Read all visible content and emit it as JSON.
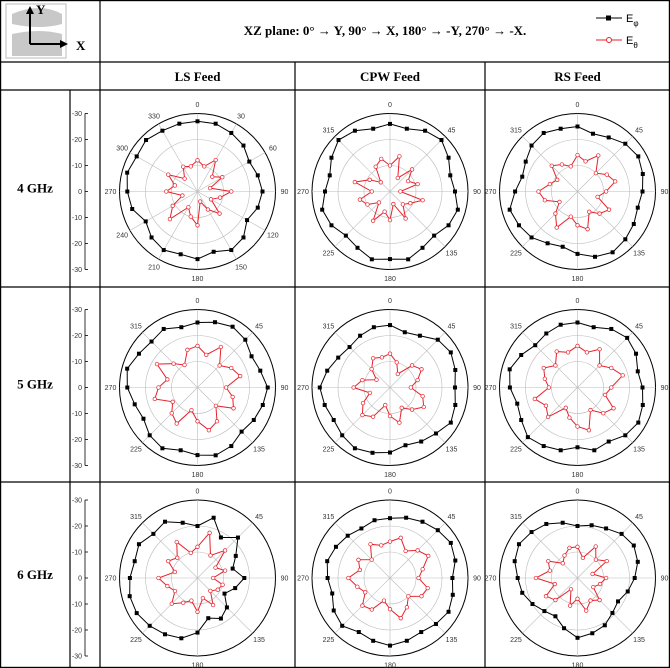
{
  "header": {
    "title": "XZ plane: 0° → Y, 90° → X, 180° → -Y, 270° → -X."
  },
  "icon": {
    "y": "Y",
    "x": "X"
  },
  "columns": [
    "LS Feed",
    "CPW Feed",
    "RS Feed"
  ],
  "rows": [
    "4 GHz",
    "5 GHz",
    "6 GHz"
  ],
  "legend": [
    {
      "name": "E",
      "subscript": "φ",
      "color": "#000000",
      "marker": "square"
    },
    {
      "name": "E",
      "subscript": "θ",
      "color": "#e8202a",
      "marker": "circle"
    }
  ],
  "chart_data": [
    {
      "type": "polar",
      "x": [
        0,
        15,
        30,
        45,
        60,
        75,
        90,
        105,
        120,
        135,
        150,
        165,
        180,
        195,
        210,
        225,
        240,
        255,
        270,
        285,
        300,
        315,
        330,
        345
      ],
      "rlim": [
        -30,
        0
      ],
      "rticks": [
        -30,
        -20,
        -10,
        0
      ],
      "angle_ticks": [
        0,
        30,
        60,
        90,
        120,
        150,
        180,
        210,
        240,
        270,
        300,
        330
      ],
      "series": [
        {
          "values": [
            -3,
            -3,
            -4,
            -5,
            -7,
            -6,
            -5,
            -6,
            -8,
            -5,
            -4,
            -6,
            -4,
            -5,
            -4,
            -5,
            -7,
            -4,
            -3,
            -2,
            -3,
            -2,
            -3,
            -3
          ]
        },
        {
          "values": [
            -18,
            -20,
            -16,
            -22,
            -19,
            -25,
            -17,
            -21,
            -24,
            -18,
            -22,
            -26,
            -17,
            -20,
            -23,
            -15,
            -19,
            -24,
            -18,
            -21,
            -17,
            -23,
            -19,
            -20
          ]
        }
      ]
    },
    {
      "type": "polar",
      "x": [
        0,
        15,
        30,
        45,
        60,
        75,
        90,
        105,
        120,
        135,
        150,
        165,
        180,
        195,
        210,
        225,
        240,
        255,
        270,
        285,
        300,
        315,
        330,
        345
      ],
      "rlim": [
        -30,
        0
      ],
      "rticks": [
        -30,
        -20,
        -10,
        0
      ],
      "angle_ticks": [
        0,
        45,
        90,
        135,
        180,
        225,
        270,
        315
      ],
      "series": [
        {
          "values": [
            -4,
            -5,
            -3,
            -2,
            -4,
            -6,
            -5,
            -3,
            -4,
            -6,
            -5,
            -3,
            -4,
            -3,
            -5,
            -6,
            -4,
            -3,
            -5,
            -6,
            -4,
            -2,
            -3,
            -5
          ]
        },
        {
          "values": [
            -20,
            -16,
            -24,
            -18,
            -22,
            -19,
            -26,
            -17,
            -21,
            -23,
            -18,
            -25,
            -19,
            -22,
            -17,
            -24,
            -20,
            -18,
            -23,
            -16,
            -21,
            -25,
            -19,
            -17
          ]
        }
      ]
    },
    {
      "type": "polar",
      "x": [
        0,
        15,
        30,
        45,
        60,
        75,
        90,
        105,
        120,
        135,
        150,
        165,
        180,
        195,
        210,
        225,
        240,
        255,
        270,
        285,
        300,
        315,
        330,
        345
      ],
      "rlim": [
        -30,
        0
      ],
      "rticks": [
        -30,
        -20,
        -10,
        0
      ],
      "angle_ticks": [
        0,
        45,
        90,
        135,
        180,
        225,
        270,
        315
      ],
      "series": [
        {
          "values": [
            -5,
            -7,
            -6,
            -4,
            -3,
            -4,
            -5,
            -6,
            -5,
            -4,
            -3,
            -4,
            -6,
            -8,
            -7,
            -5,
            -4,
            -3,
            -6,
            -8,
            -7,
            -5,
            -4,
            -5
          ]
        },
        {
          "values": [
            -16,
            -18,
            -14,
            -20,
            -17,
            -15,
            -19,
            -22,
            -16,
            -18,
            -21,
            -15,
            -17,
            -20,
            -14,
            -18,
            -22,
            -17,
            -15,
            -19,
            -21,
            -16,
            -18,
            -20
          ]
        }
      ]
    },
    {
      "type": "polar",
      "x": [
        0,
        15,
        30,
        45,
        60,
        75,
        90,
        105,
        120,
        135,
        150,
        165,
        180,
        195,
        210,
        225,
        240,
        255,
        270,
        285,
        300,
        315,
        330,
        345
      ],
      "rlim": [
        -30,
        0
      ],
      "rticks": [
        -30,
        -20,
        -10,
        0
      ],
      "angle_ticks": [
        0,
        45,
        90,
        135,
        180,
        225,
        270,
        315
      ],
      "series": [
        {
          "values": [
            -5,
            -4,
            -3,
            -4,
            -6,
            -5,
            -3,
            -4,
            -5,
            -6,
            -4,
            -3,
            -4,
            -5,
            -3,
            -4,
            -6,
            -5,
            -3,
            -2,
            -4,
            -5,
            -4,
            -6
          ]
        },
        {
          "values": [
            -14,
            -17,
            -12,
            -18,
            -15,
            -13,
            -19,
            -16,
            -14,
            -20,
            -15,
            -13,
            -17,
            -21,
            -14,
            -16,
            -19,
            -13,
            -15,
            -18,
            -12,
            -17,
            -20,
            -15
          ]
        }
      ]
    },
    {
      "type": "polar",
      "x": [
        0,
        15,
        30,
        45,
        60,
        75,
        90,
        105,
        120,
        135,
        150,
        165,
        180,
        195,
        210,
        225,
        240,
        255,
        270,
        285,
        300,
        315,
        330,
        345
      ],
      "rlim": [
        -30,
        0
      ],
      "rticks": [
        -30,
        -20,
        -10,
        0
      ],
      "angle_ticks": [
        0,
        45,
        90,
        135,
        180,
        225,
        270,
        315
      ],
      "series": [
        {
          "values": [
            -6,
            -8,
            -7,
            -4,
            -3,
            -4,
            -5,
            -4,
            -3,
            -5,
            -6,
            -7,
            -5,
            -4,
            -3,
            -4,
            -5,
            -4,
            -3,
            -5,
            -7,
            -8,
            -7,
            -6
          ]
        },
        {
          "values": [
            -17,
            -20,
            -24,
            -18,
            -16,
            -19,
            -22,
            -17,
            -15,
            -18,
            -21,
            -16,
            -19,
            -23,
            -17,
            -15,
            -18,
            -22,
            -16,
            -19,
            -24,
            -20,
            -17,
            -18
          ]
        }
      ]
    },
    {
      "type": "polar",
      "x": [
        0,
        15,
        30,
        45,
        60,
        75,
        90,
        105,
        120,
        135,
        150,
        165,
        180,
        195,
        210,
        225,
        240,
        255,
        270,
        285,
        300,
        315,
        330,
        345
      ],
      "rlim": [
        -30,
        0
      ],
      "rticks": [
        -30,
        -20,
        -10,
        0
      ],
      "angle_ticks": [
        0,
        45,
        90,
        135,
        180,
        225,
        270,
        315
      ],
      "series": [
        {
          "values": [
            -5,
            -6,
            -4,
            -3,
            -4,
            -6,
            -5,
            -4,
            -3,
            -4,
            -6,
            -5,
            -7,
            -5,
            -4,
            -3,
            -5,
            -6,
            -4,
            -3,
            -5,
            -7,
            -6,
            -5
          ]
        },
        {
          "values": [
            -14,
            -16,
            -13,
            -18,
            -15,
            -12,
            -17,
            -19,
            -14,
            -16,
            -20,
            -13,
            -15,
            -18,
            -21,
            -14,
            -16,
            -13,
            -19,
            -17,
            -15,
            -18,
            -14,
            -16
          ]
        }
      ]
    },
    {
      "type": "polar",
      "x": [
        0,
        15,
        30,
        45,
        60,
        75,
        90,
        105,
        120,
        135,
        150,
        165,
        180,
        195,
        210,
        225,
        240,
        255,
        270,
        285,
        300,
        315,
        330,
        345
      ],
      "rlim": [
        -30,
        0
      ],
      "rticks": [
        -30,
        -20,
        -10,
        0
      ],
      "angle_ticks": [
        0,
        45,
        90,
        135,
        180,
        225,
        270,
        315
      ],
      "series": [
        {
          "values": [
            -10,
            -6,
            -12,
            -8,
            -13,
            -16,
            -12,
            -15,
            -18,
            -14,
            -12,
            -14,
            -9,
            -6,
            -5,
            -4,
            -3,
            -3,
            -4,
            -5,
            -4,
            -6,
            -5,
            -8
          ]
        },
        {
          "values": [
            -18,
            -12,
            -20,
            -15,
            -22,
            -19,
            -24,
            -20,
            -21,
            -23,
            -18,
            -22,
            -17,
            -21,
            -19,
            -16,
            -20,
            -18,
            -15,
            -21,
            -17,
            -19,
            -14,
            -20
          ]
        }
      ]
    },
    {
      "type": "polar",
      "x": [
        0,
        15,
        30,
        45,
        60,
        75,
        90,
        105,
        120,
        135,
        150,
        165,
        180,
        195,
        210,
        225,
        240,
        255,
        270,
        285,
        300,
        315,
        330,
        345
      ],
      "rlim": [
        -30,
        0
      ],
      "rticks": [
        -30,
        -20,
        -10,
        0
      ],
      "angle_ticks": [
        0,
        45,
        90,
        135,
        180,
        225,
        270,
        315
      ],
      "series": [
        {
          "values": [
            -7,
            -6,
            -5,
            -4,
            -3,
            -4,
            -6,
            -5,
            -4,
            -5,
            -6,
            -5,
            -4,
            -5,
            -6,
            -4,
            -5,
            -7,
            -6,
            -5,
            -6,
            -7,
            -8,
            -7
          ]
        },
        {
          "values": [
            -16,
            -14,
            -18,
            -15,
            -13,
            -17,
            -19,
            -15,
            -16,
            -20,
            -17,
            -14,
            -18,
            -21,
            -16,
            -15,
            -19,
            -17,
            -14,
            -18,
            -16,
            -20,
            -15,
            -17
          ]
        }
      ]
    },
    {
      "type": "polar",
      "x": [
        0,
        15,
        30,
        45,
        60,
        75,
        90,
        105,
        120,
        135,
        150,
        165,
        180,
        195,
        210,
        225,
        240,
        255,
        270,
        285,
        300,
        315,
        330,
        345
      ],
      "rlim": [
        -30,
        0
      ],
      "rticks": [
        -30,
        -20,
        -10,
        0
      ],
      "angle_ticks": [
        0,
        45,
        90,
        135,
        180,
        225,
        270,
        315
      ],
      "series": [
        {
          "values": [
            -10,
            -9,
            -8,
            -6,
            -5,
            -6,
            -8,
            -10,
            -12,
            -11,
            -9,
            -8,
            -7,
            -10,
            -13,
            -12,
            -10,
            -8,
            -7,
            -5,
            -4,
            -5,
            -6,
            -8
          ]
        },
        {
          "values": [
            -18,
            -22,
            -16,
            -20,
            -17,
            -24,
            -19,
            -21,
            -23,
            -18,
            -20,
            -17,
            -22,
            -19,
            -25,
            -18,
            -16,
            -21,
            -14,
            -19,
            -17,
            -22,
            -20,
            -18
          ]
        }
      ]
    }
  ]
}
